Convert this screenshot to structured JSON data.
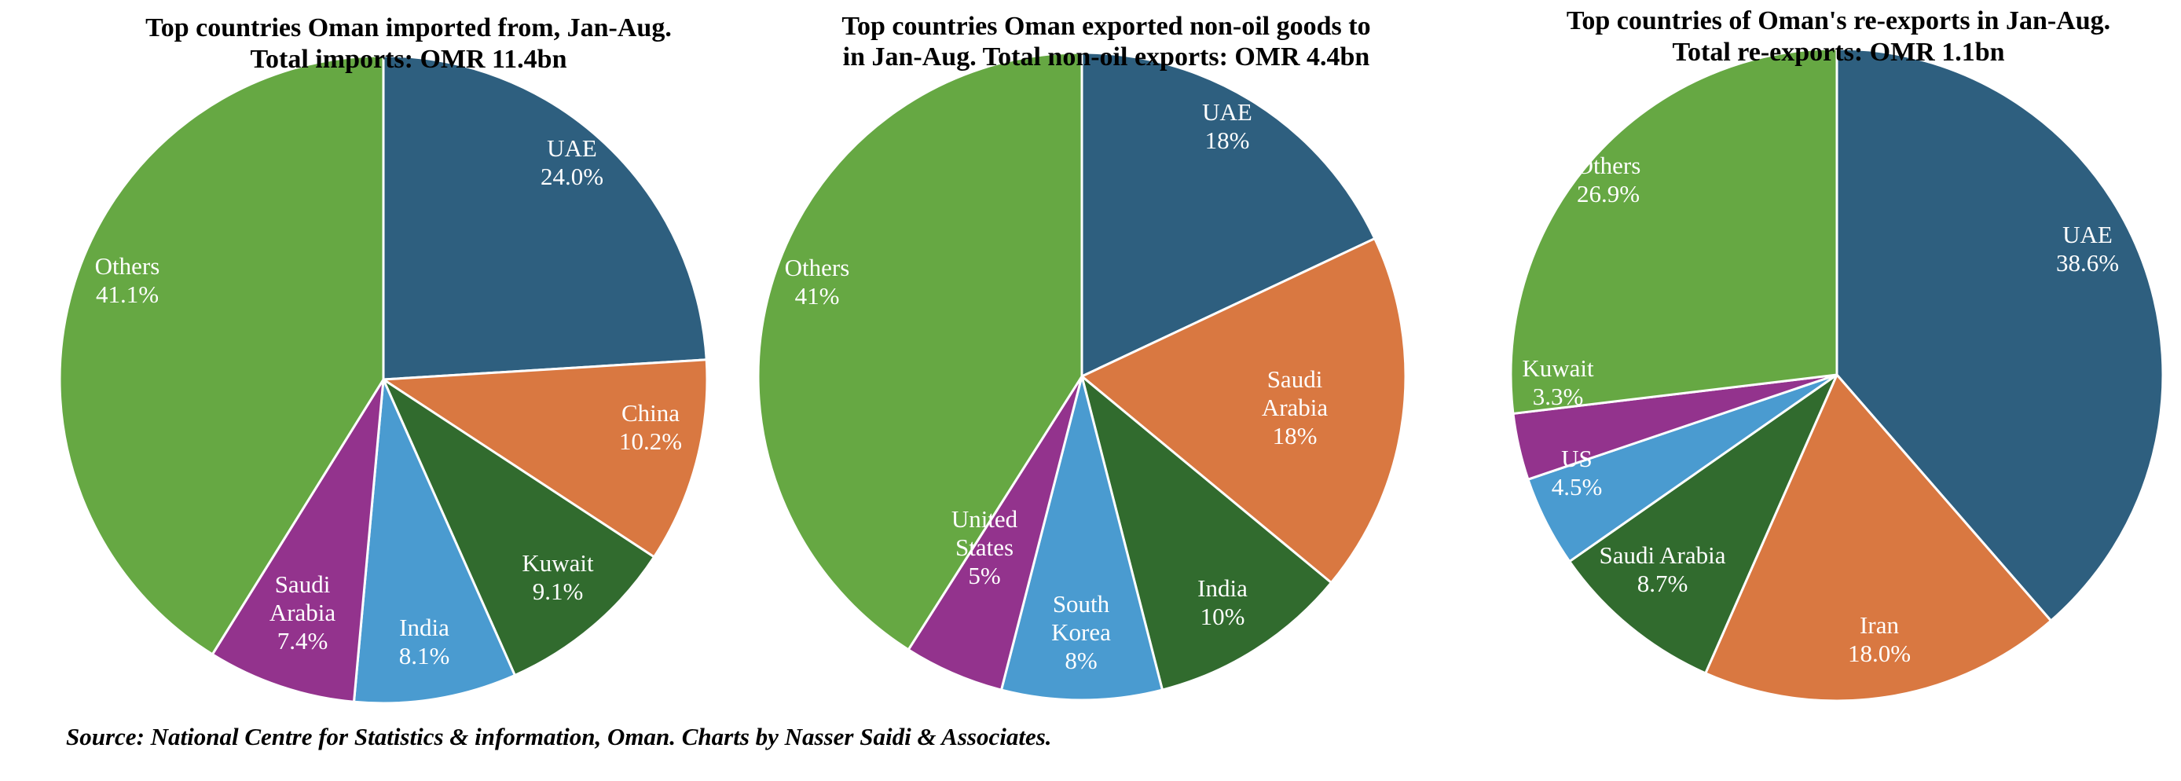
{
  "colors": {
    "navy": "#2e5f7f",
    "orange": "#d97841",
    "dark_green": "#316b2e",
    "light_blue": "#4a9bd0",
    "purple": "#93338d",
    "green": "#66a843",
    "slice_border": "#ffffff"
  },
  "source": "Source: National Centre for Statistics & information, Oman. Charts by Nasser Saidi & Associates.",
  "chart_data": [
    {
      "type": "pie",
      "title_lines": [
        "Top countries Oman imported from, Jan-Aug.",
        "Total imports: OMR 11.4bn"
      ],
      "unit": "%",
      "slices": [
        {
          "name_lines": [
            "UAE"
          ],
          "value": 24.0,
          "value_label": "24.0%",
          "color": "#2e5f7f"
        },
        {
          "name_lines": [
            "China"
          ],
          "value": 10.2,
          "value_label": "10.2%",
          "color": "#d97841"
        },
        {
          "name_lines": [
            "Kuwait"
          ],
          "value": 9.1,
          "value_label": "9.1%",
          "color": "#316b2e"
        },
        {
          "name_lines": [
            "India"
          ],
          "value": 8.1,
          "value_label": "8.1%",
          "color": "#4a9bd0"
        },
        {
          "name_lines": [
            "Saudi",
            "Arabia"
          ],
          "value": 7.4,
          "value_label": "7.4%",
          "color": "#93338d"
        },
        {
          "name_lines": [
            "Others"
          ],
          "value": 41.1,
          "value_label": "41.1%",
          "color": "#66a843"
        }
      ]
    },
    {
      "type": "pie",
      "title_lines": [
        "Top countries Oman exported non-oil goods to",
        "in Jan-Aug. Total non-oil exports: OMR 4.4bn"
      ],
      "unit": "%",
      "slices": [
        {
          "name_lines": [
            "UAE"
          ],
          "value": 18,
          "value_label": "18%",
          "color": "#2e5f7f"
        },
        {
          "name_lines": [
            "Saudi",
            "Arabia"
          ],
          "value": 18,
          "value_label": "18%",
          "color": "#d97841"
        },
        {
          "name_lines": [
            "India"
          ],
          "value": 10,
          "value_label": "10%",
          "color": "#316b2e"
        },
        {
          "name_lines": [
            "South",
            "Korea"
          ],
          "value": 8,
          "value_label": "8%",
          "color": "#4a9bd0"
        },
        {
          "name_lines": [
            "United",
            "States"
          ],
          "value": 5,
          "value_label": "5%",
          "color": "#93338d"
        },
        {
          "name_lines": [
            "Others"
          ],
          "value": 41,
          "value_label": "41%",
          "color": "#66a843"
        }
      ]
    },
    {
      "type": "pie",
      "title_lines": [
        "Top countries of Oman's re-exports in Jan-Aug.",
        "Total re-exports: OMR 1.1bn"
      ],
      "unit": "%",
      "slices": [
        {
          "name_lines": [
            "UAE"
          ],
          "value": 38.6,
          "value_label": "38.6%",
          "color": "#2e5f7f"
        },
        {
          "name_lines": [
            "Iran"
          ],
          "value": 18.0,
          "value_label": "18.0%",
          "color": "#d97841"
        },
        {
          "name_lines": [
            "Saudi Arabia"
          ],
          "value": 8.7,
          "value_label": "8.7%",
          "color": "#316b2e"
        },
        {
          "name_lines": [
            "US"
          ],
          "value": 4.5,
          "value_label": "4.5%",
          "color": "#4a9bd0"
        },
        {
          "name_lines": [
            "Kuwait"
          ],
          "value": 3.3,
          "value_label": "3.3%",
          "color": "#93338d"
        },
        {
          "name_lines": [
            "Others"
          ],
          "value": 26.9,
          "value_label": "26.9%",
          "color": "#66a843"
        }
      ]
    }
  ]
}
